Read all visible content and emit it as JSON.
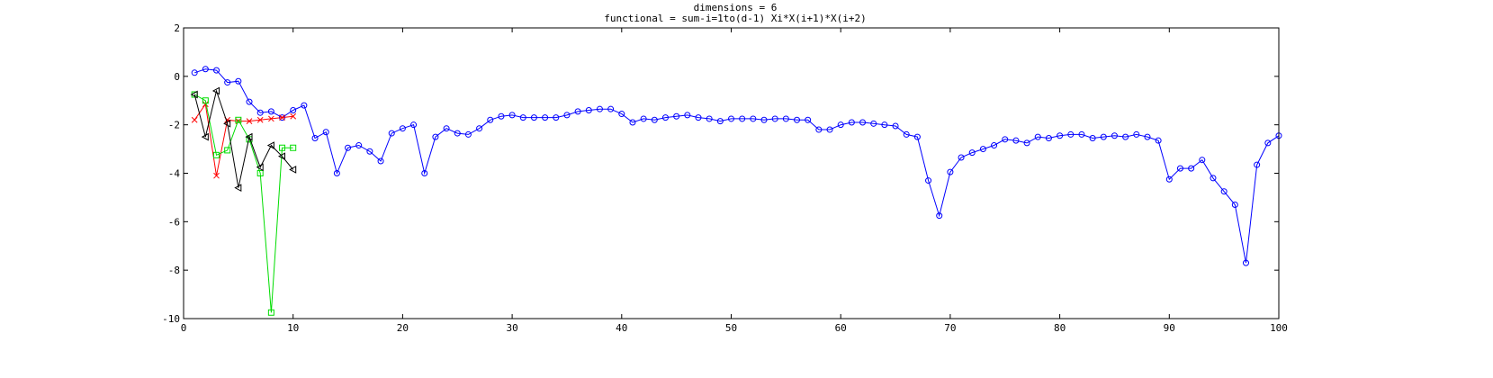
{
  "chart_data": {
    "type": "line",
    "title": "dimensions = 6",
    "subtitle": "functional = sum-i=1to(d-1) Xi*X(i+1)*X(i+2)",
    "xlabel": "",
    "ylabel": "",
    "xlim": [
      0,
      100
    ],
    "ylim": [
      -10,
      2
    ],
    "xticks": [
      0,
      10,
      20,
      30,
      40,
      50,
      60,
      70,
      80,
      90,
      100
    ],
    "yticks": [
      2,
      0,
      -2,
      -4,
      -6,
      -8,
      -10
    ],
    "grid": false,
    "series": [
      {
        "color": "#0000ff",
        "marker": "circle",
        "x": [
          1,
          2,
          3,
          4,
          5,
          6,
          7,
          8,
          9,
          10,
          11,
          12,
          13,
          14,
          15,
          16,
          17,
          18,
          19,
          20,
          21,
          22,
          23,
          24,
          25,
          26,
          27,
          28,
          29,
          30,
          31,
          32,
          33,
          34,
          35,
          36,
          37,
          38,
          39,
          40,
          41,
          42,
          43,
          44,
          45,
          46,
          47,
          48,
          49,
          50,
          51,
          52,
          53,
          54,
          55,
          56,
          57,
          58,
          59,
          60,
          61,
          62,
          63,
          64,
          65,
          66,
          67,
          68,
          69,
          70,
          71,
          72,
          73,
          74,
          75,
          76,
          77,
          78,
          79,
          80,
          81,
          82,
          83,
          84,
          85,
          86,
          87,
          88,
          89,
          90,
          91,
          92,
          93,
          94,
          95,
          96,
          97,
          98,
          99,
          100
        ],
        "y": [
          0.15,
          0.3,
          0.25,
          -0.25,
          -0.2,
          -1.05,
          -1.5,
          -1.45,
          -1.7,
          -1.4,
          -1.2,
          -2.55,
          -2.3,
          -4.0,
          -2.95,
          -2.85,
          -3.1,
          -3.5,
          -2.35,
          -2.15,
          -2.0,
          -4.0,
          -2.5,
          -2.15,
          -2.35,
          -2.4,
          -2.15,
          -1.8,
          -1.65,
          -1.6,
          -1.7,
          -1.7,
          -1.7,
          -1.7,
          -1.6,
          -1.45,
          -1.4,
          -1.35,
          -1.35,
          -1.55,
          -1.9,
          -1.75,
          -1.8,
          -1.7,
          -1.65,
          -1.6,
          -1.7,
          -1.75,
          -1.85,
          -1.75,
          -1.75,
          -1.75,
          -1.8,
          -1.75,
          -1.75,
          -1.8,
          -1.8,
          -2.2,
          -2.2,
          -2.0,
          -1.9,
          -1.9,
          -1.95,
          -2.0,
          -2.05,
          -2.4,
          -2.5,
          -4.3,
          -5.75,
          -3.95,
          -3.35,
          -3.15,
          -3.0,
          -2.85,
          -2.6,
          -2.65,
          -2.75,
          -2.5,
          -2.55,
          -2.45,
          -2.4,
          -2.4,
          -2.55,
          -2.5,
          -2.45,
          -2.5,
          -2.4,
          -2.5,
          -2.65,
          -4.25,
          -3.8,
          -3.8,
          -3.45,
          -4.2,
          -4.75,
          -5.3,
          -7.7,
          -3.65,
          -2.75,
          -2.45
        ]
      },
      {
        "color": "#ff0000",
        "marker": "x",
        "x": [
          1,
          2,
          3,
          4,
          5,
          6,
          7,
          8,
          9,
          10
        ],
        "y": [
          -1.8,
          -1.15,
          -4.1,
          -1.8,
          -1.85,
          -1.85,
          -1.8,
          -1.75,
          -1.7,
          -1.65
        ]
      },
      {
        "color": "#00dd00",
        "marker": "square",
        "x": [
          1,
          2,
          3,
          4,
          5,
          6,
          7,
          8,
          9,
          10
        ],
        "y": [
          -0.75,
          -1.0,
          -3.25,
          -3.05,
          -1.8,
          -2.6,
          -4.0,
          -9.75,
          -2.95,
          -2.95
        ]
      },
      {
        "color": "#000000",
        "marker": "triangle-left",
        "x": [
          1,
          2,
          3,
          4,
          5,
          6,
          7,
          8,
          9,
          10
        ],
        "y": [
          -0.75,
          -2.5,
          -0.6,
          -1.95,
          -4.6,
          -2.5,
          -3.75,
          -2.85,
          -3.3,
          -3.85
        ]
      }
    ]
  }
}
